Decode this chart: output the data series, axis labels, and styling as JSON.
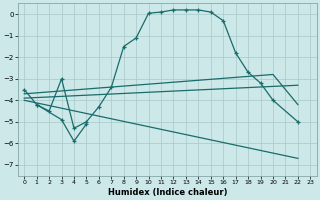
{
  "xlabel": "Humidex (Indice chaleur)",
  "background_color": "#cce8e8",
  "grid_color": "#aac8c8",
  "line_color": "#1a6b6b",
  "xlim": [
    -0.5,
    23.5
  ],
  "ylim": [
    -7.5,
    0.5
  ],
  "yticks": [
    0,
    -1,
    -2,
    -3,
    -4,
    -5,
    -6,
    -7
  ],
  "xticks": [
    0,
    1,
    2,
    3,
    4,
    5,
    6,
    7,
    8,
    9,
    10,
    11,
    12,
    13,
    14,
    15,
    16,
    17,
    18,
    19,
    20,
    21,
    22,
    23
  ],
  "curve1_x": [
    0,
    1,
    2,
    3,
    4,
    5,
    6,
    7,
    8,
    9,
    10,
    11,
    12,
    13,
    14,
    15,
    16,
    17,
    18,
    19,
    20,
    22
  ],
  "curve1_y": [
    -3.5,
    -4.2,
    -4.5,
    -3.0,
    -5.3,
    -5.0,
    -4.3,
    -3.4,
    -1.5,
    -1.1,
    0.05,
    0.1,
    0.2,
    0.2,
    0.2,
    0.1,
    -0.3,
    -1.8,
    -2.7,
    -3.2,
    -4.0,
    -5.0
  ],
  "curve2_x": [
    1,
    3,
    4,
    5
  ],
  "curve2_y": [
    -4.2,
    -4.9,
    -5.9,
    -5.1
  ],
  "curve3_x": [
    0,
    20,
    22
  ],
  "curve3_y": [
    -3.7,
    -2.8,
    -4.2
  ],
  "curve4_x": [
    0,
    22
  ],
  "curve4_y": [
    -3.9,
    -3.3
  ],
  "curve5_x": [
    0,
    22
  ],
  "curve5_y": [
    -4.0,
    -6.7
  ]
}
